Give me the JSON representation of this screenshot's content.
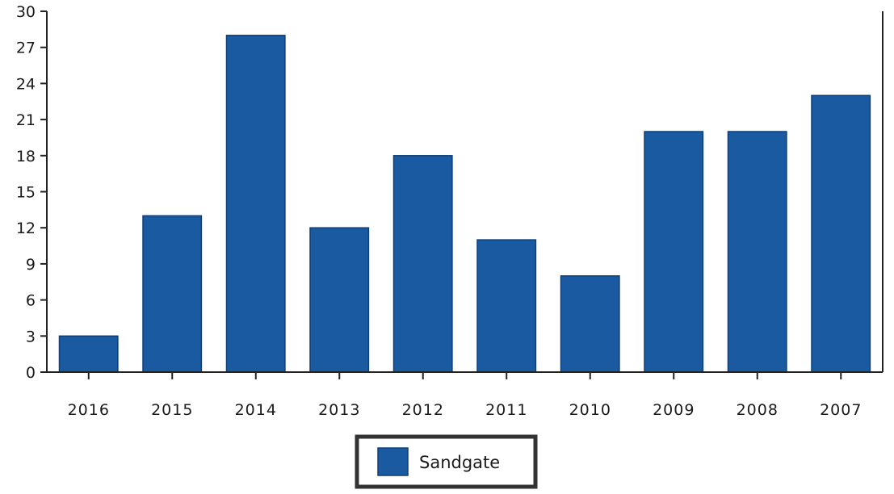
{
  "chart_data": {
    "type": "bar",
    "title": "",
    "xlabel": "",
    "ylabel": "",
    "categories": [
      "2016",
      "2015",
      "2014",
      "2013",
      "2012",
      "2011",
      "2010",
      "2009",
      "2008",
      "2007"
    ],
    "series": [
      {
        "name": "Sandgate",
        "values": [
          3,
          13,
          28,
          12,
          18,
          11,
          8,
          20,
          20,
          23
        ],
        "color": "#1a5aa0"
      }
    ],
    "ylim": [
      0,
      30
    ],
    "yticks": [
      "0",
      "3",
      "6",
      "9",
      "12",
      "15",
      "18",
      "21",
      "24",
      "27",
      "30"
    ],
    "grid": false,
    "legend": "bottom-center"
  }
}
